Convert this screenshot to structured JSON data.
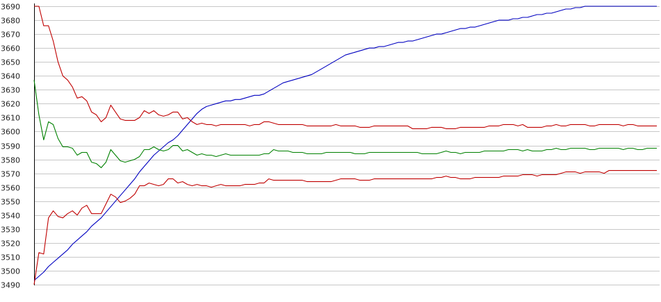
{
  "chart_data": {
    "type": "line",
    "title": "",
    "xlabel": "",
    "ylabel": "",
    "ylim": [
      3490,
      3690
    ],
    "yticks": [
      3490,
      3500,
      3510,
      3520,
      3530,
      3540,
      3550,
      3560,
      3570,
      3580,
      3590,
      3600,
      3610,
      3620,
      3630,
      3640,
      3650,
      3660,
      3670,
      3680,
      3690
    ],
    "grid": true,
    "legend": "none",
    "x": [
      0,
      1,
      2,
      3,
      4,
      5,
      6,
      7,
      8,
      9,
      10,
      11,
      12,
      13,
      14,
      15,
      16,
      17,
      18,
      19,
      20,
      21,
      22,
      23,
      24,
      25,
      26,
      27,
      28,
      29,
      30,
      31,
      32,
      33,
      34,
      35,
      36,
      37,
      38,
      39,
      40,
      41,
      42,
      43,
      44,
      45,
      46,
      47,
      48,
      49,
      50,
      51,
      52,
      53,
      54,
      55,
      56,
      57,
      58,
      59,
      60,
      61,
      62,
      63,
      64,
      65,
      66,
      67,
      68,
      69,
      70,
      71,
      72,
      73,
      74,
      75,
      76,
      77,
      78,
      79,
      80,
      81,
      82,
      83,
      84,
      85,
      86,
      87,
      88,
      89,
      90,
      91,
      92,
      93,
      94,
      95,
      96,
      97,
      98,
      99,
      100,
      101,
      102,
      103,
      104,
      105,
      106,
      107,
      108,
      109,
      110,
      111,
      112,
      113,
      114,
      115,
      116,
      117,
      118,
      119,
      120,
      121,
      122,
      123,
      124,
      125,
      126,
      127,
      128,
      129,
      130
    ],
    "series": [
      {
        "color": "#0000c0",
        "values": [
          3493,
          3496,
          3499,
          3503,
          3506,
          3509,
          3512,
          3515,
          3519,
          3522,
          3525,
          3528,
          3532,
          3535,
          3538,
          3542,
          3546,
          3550,
          3554,
          3558,
          3562,
          3566,
          3571,
          3575,
          3579,
          3583,
          3586,
          3589,
          3592,
          3594,
          3597,
          3601,
          3605,
          3609,
          3613,
          3616,
          3618,
          3619,
          3620,
          3621,
          3622,
          3622,
          3623,
          3623,
          3624,
          3625,
          3626,
          3626,
          3627,
          3629,
          3631,
          3633,
          3635,
          3636,
          3637,
          3638,
          3639,
          3640,
          3641,
          3643,
          3645,
          3647,
          3649,
          3651,
          3653,
          3655,
          3656,
          3657,
          3658,
          3659,
          3660,
          3660,
          3661,
          3661,
          3662,
          3663,
          3664,
          3664,
          3665,
          3665,
          3666,
          3667,
          3668,
          3669,
          3670,
          3670,
          3671,
          3672,
          3673,
          3674,
          3674,
          3675,
          3675,
          3676,
          3677,
          3678,
          3679,
          3680,
          3680,
          3680,
          3681,
          3681,
          3682,
          3682,
          3683,
          3684,
          3684,
          3685,
          3685,
          3686,
          3687,
          3688,
          3688,
          3689,
          3689,
          3690,
          3690,
          3690,
          3690,
          3690,
          3690,
          3690,
          3690,
          3690,
          3690,
          3690,
          3690,
          3690,
          3690,
          3690,
          3690
        ]
      },
      {
        "color": "#c00000",
        "values": [
          3690,
          3690,
          3676,
          3676,
          3665,
          3650,
          3640,
          3637,
          3632,
          3624,
          3625,
          3622,
          3614,
          3612,
          3607,
          3610,
          3619,
          3614,
          3609,
          3608,
          3608,
          3608,
          3610,
          3615,
          3613,
          3615,
          3612,
          3611,
          3612,
          3614,
          3614,
          3609,
          3610,
          3607,
          3605,
          3606,
          3605,
          3605,
          3604,
          3605,
          3605,
          3605,
          3605,
          3605,
          3605,
          3604,
          3605,
          3605,
          3607,
          3607,
          3606,
          3605,
          3605,
          3605,
          3605,
          3605,
          3605,
          3604,
          3604,
          3604,
          3604,
          3604,
          3604,
          3605,
          3604,
          3604,
          3604,
          3604,
          3603,
          3603,
          3603,
          3604,
          3604,
          3604,
          3604,
          3604,
          3604,
          3604,
          3604,
          3602,
          3602,
          3602,
          3602,
          3603,
          3603,
          3603,
          3602,
          3602,
          3602,
          3603,
          3603,
          3603,
          3603,
          3603,
          3603,
          3604,
          3604,
          3604,
          3605,
          3605,
          3605,
          3604,
          3605,
          3603,
          3603,
          3603,
          3603,
          3604,
          3604,
          3605,
          3604,
          3604,
          3605,
          3605,
          3605,
          3605,
          3604,
          3604,
          3605,
          3605,
          3605,
          3605,
          3605,
          3604,
          3605,
          3605,
          3604,
          3604,
          3604,
          3604,
          3604
        ]
      },
      {
        "color": "#008000",
        "values": [
          3637,
          3612,
          3594,
          3607,
          3605,
          3595,
          3589,
          3589,
          3588,
          3583,
          3585,
          3585,
          3578,
          3577,
          3574,
          3578,
          3587,
          3583,
          3579,
          3578,
          3579,
          3580,
          3582,
          3587,
          3587,
          3589,
          3587,
          3586,
          3587,
          3590,
          3590,
          3586,
          3587,
          3585,
          3583,
          3584,
          3583,
          3583,
          3582,
          3583,
          3584,
          3583,
          3583,
          3583,
          3583,
          3583,
          3583,
          3583,
          3584,
          3584,
          3587,
          3586,
          3586,
          3586,
          3585,
          3585,
          3585,
          3584,
          3584,
          3584,
          3584,
          3585,
          3585,
          3585,
          3585,
          3585,
          3585,
          3584,
          3584,
          3584,
          3585,
          3585,
          3585,
          3585,
          3585,
          3585,
          3585,
          3585,
          3585,
          3585,
          3585,
          3584,
          3584,
          3584,
          3584,
          3585,
          3586,
          3585,
          3585,
          3584,
          3585,
          3585,
          3585,
          3585,
          3586,
          3586,
          3586,
          3586,
          3586,
          3587,
          3587,
          3587,
          3586,
          3587,
          3586,
          3586,
          3586,
          3587,
          3587,
          3588,
          3587,
          3587,
          3588,
          3588,
          3588,
          3588,
          3587,
          3587,
          3588,
          3588,
          3588,
          3588,
          3588,
          3587,
          3588,
          3588,
          3587,
          3587,
          3588,
          3588,
          3588
        ]
      },
      {
        "color": "#c00000",
        "values": [
          3490,
          3513,
          3512,
          3538,
          3543,
          3539,
          3538,
          3541,
          3543,
          3540,
          3545,
          3547,
          3541,
          3541,
          3541,
          3548,
          3555,
          3553,
          3549,
          3550,
          3552,
          3555,
          3561,
          3561,
          3563,
          3562,
          3561,
          3562,
          3566,
          3566,
          3563,
          3564,
          3562,
          3561,
          3562,
          3561,
          3561,
          3560,
          3561,
          3562,
          3561,
          3561,
          3561,
          3561,
          3562,
          3562,
          3562,
          3563,
          3563,
          3566,
          3565,
          3565,
          3565,
          3565,
          3565,
          3565,
          3565,
          3564,
          3564,
          3564,
          3564,
          3564,
          3564,
          3565,
          3566,
          3566,
          3566,
          3566,
          3565,
          3565,
          3565,
          3566,
          3566,
          3566,
          3566,
          3566,
          3566,
          3566,
          3566,
          3566,
          3566,
          3566,
          3566,
          3566,
          3567,
          3567,
          3568,
          3567,
          3567,
          3566,
          3566,
          3566,
          3567,
          3567,
          3567,
          3567,
          3567,
          3567,
          3568,
          3568,
          3568,
          3568,
          3569,
          3569,
          3569,
          3568,
          3569,
          3569,
          3569,
          3569,
          3570,
          3571,
          3571,
          3571,
          3570,
          3571,
          3571,
          3571,
          3571,
          3570,
          3572,
          3572,
          3572,
          3572,
          3572,
          3572,
          3572,
          3572,
          3572,
          3572,
          3572
        ]
      }
    ]
  }
}
